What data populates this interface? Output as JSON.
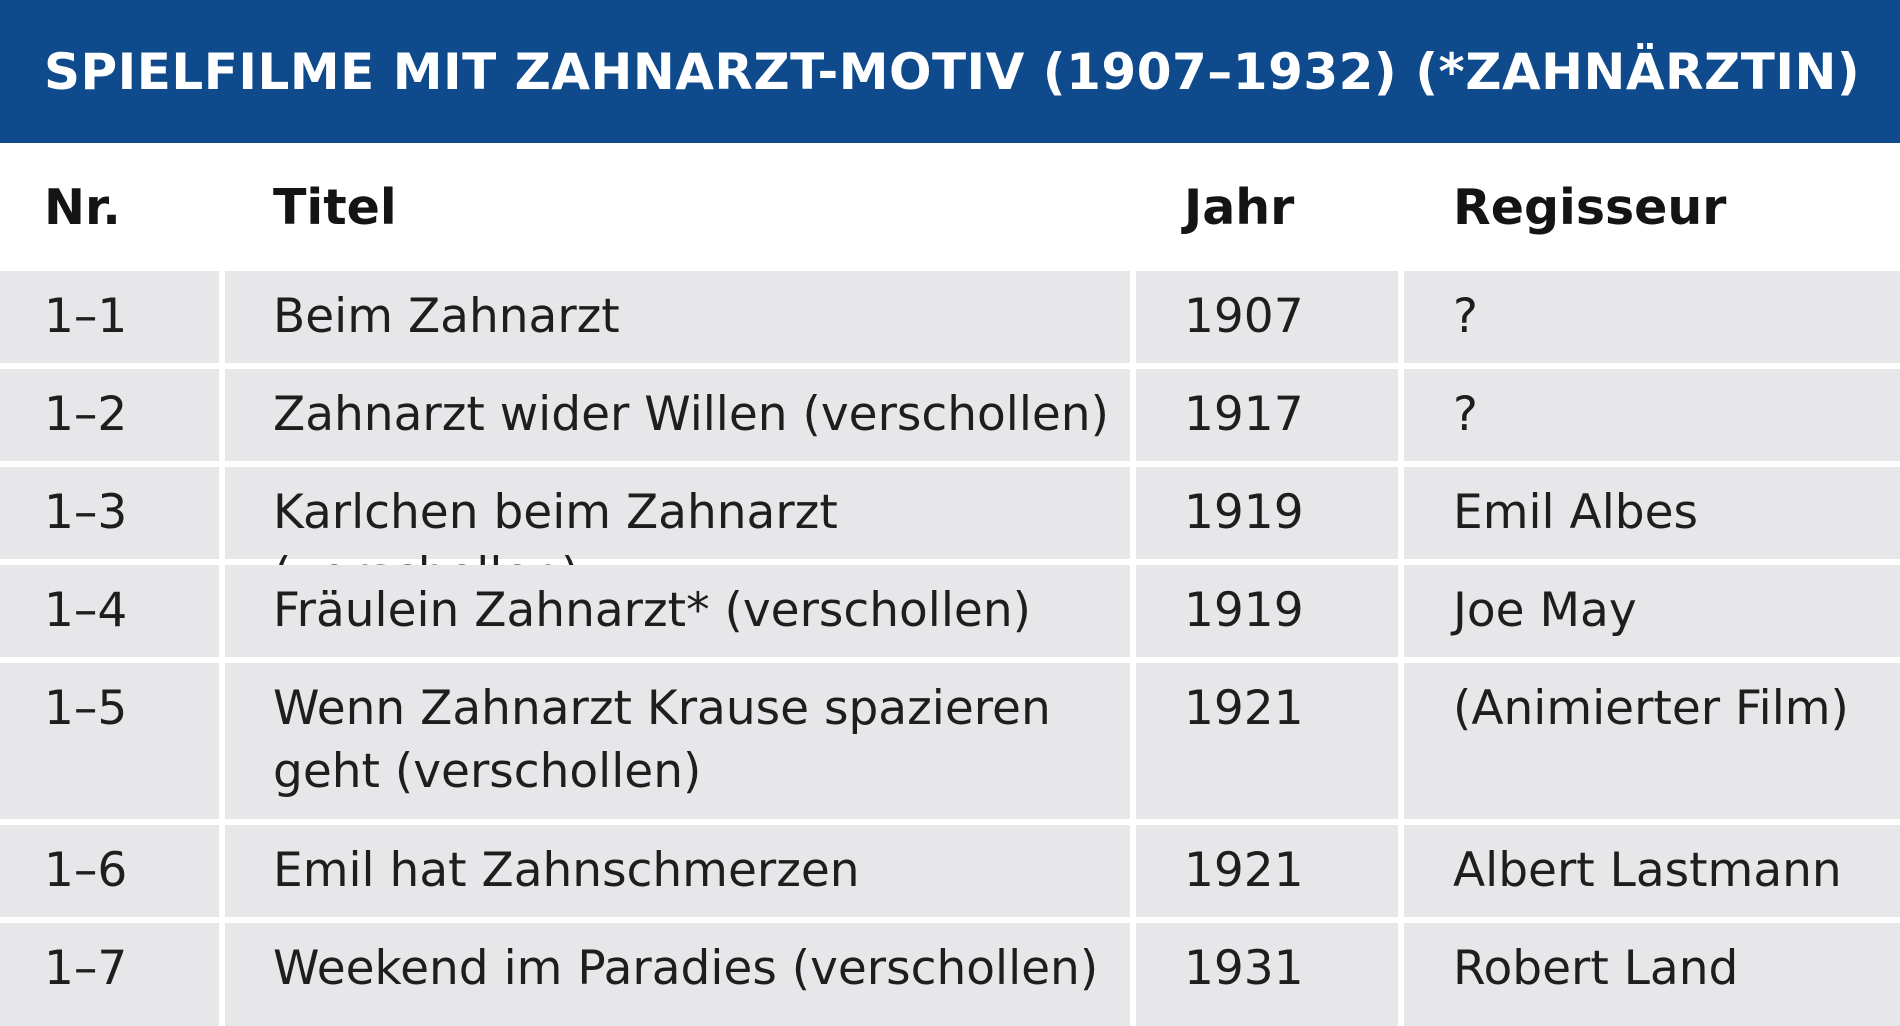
{
  "title": "SPIELFILME MIT ZAHNARZT-MOTIV (1907–1932) (*ZAHNÄRZTIN)",
  "colors": {
    "title_background": "#0e4a8c",
    "title_text": "#ffffff",
    "row_background": "#e7e7ea",
    "separator": "#ffffff"
  },
  "table": {
    "headers": {
      "nr": "Nr.",
      "titel": "Titel",
      "jahr": "Jahr",
      "regisseur": "Regisseur"
    },
    "rows": [
      {
        "nr": "1–1",
        "titel": "Beim Zahnarzt",
        "jahr": "1907",
        "regisseur": "?"
      },
      {
        "nr": "1–2",
        "titel": "Zahnarzt wider Willen (verschollen)",
        "jahr": "1917",
        "regisseur": "?"
      },
      {
        "nr": "1–3",
        "titel": "Karlchen beim Zahnarzt (verschollen)",
        "jahr": "1919",
        "regisseur": "Emil Albes"
      },
      {
        "nr": "1–4",
        "titel": "Fräulein Zahnarzt* (verschollen)",
        "jahr": "1919",
        "regisseur": "Joe May"
      },
      {
        "nr": "1–5",
        "titel": "Wenn Zahnarzt Krause spazieren geht (verschollen)",
        "jahr": "1921",
        "regisseur": "(Animierter Film)"
      },
      {
        "nr": "1–6",
        "titel": "Emil hat Zahnschmerzen",
        "jahr": "1921",
        "regisseur": "Albert Lastmann"
      },
      {
        "nr": "1–7",
        "titel": "Weekend im Paradies (verschollen)",
        "jahr": "1931",
        "regisseur": "Robert Land"
      }
    ]
  }
}
